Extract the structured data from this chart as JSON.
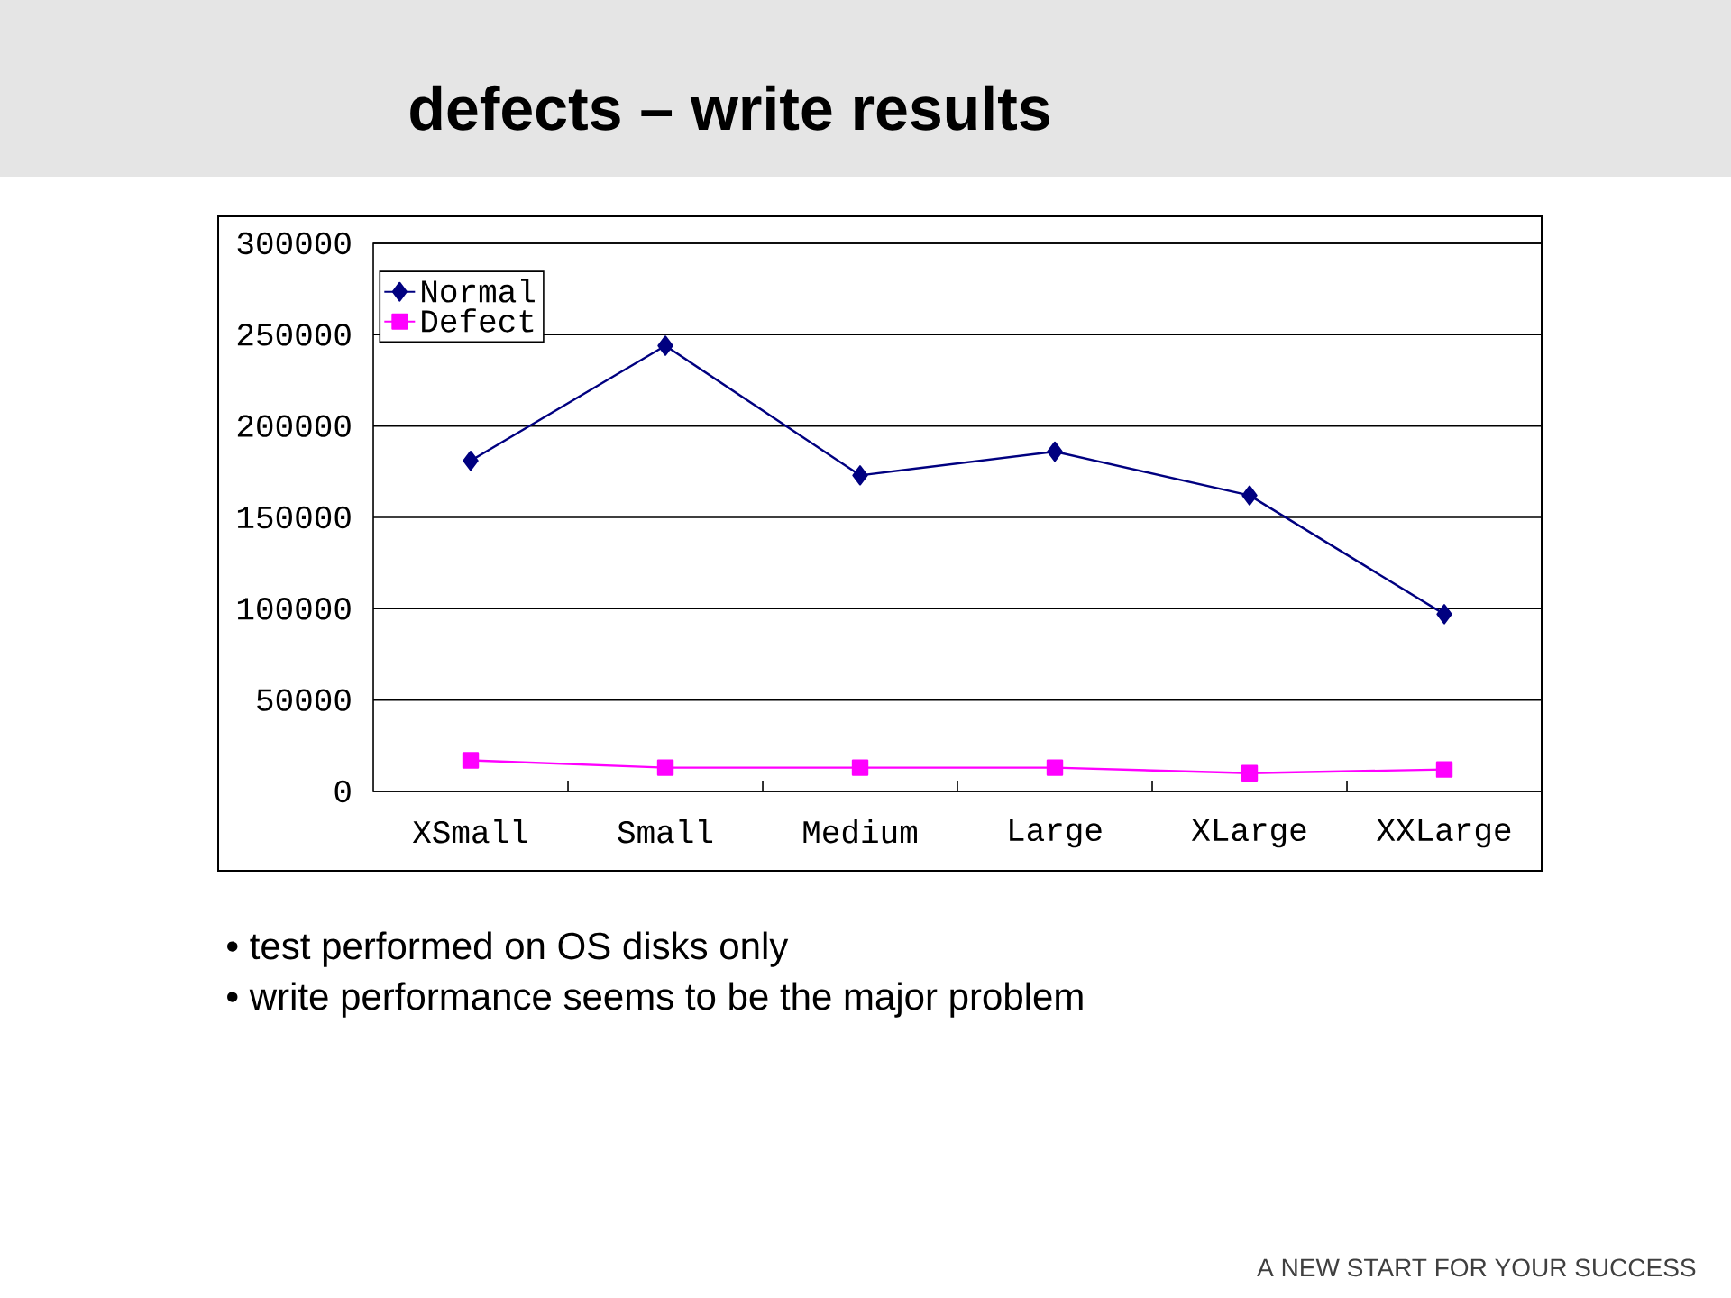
{
  "chart_data": {
    "type": "line",
    "title": "defects – write results",
    "annotations": [
      "• test performed on OS disks only",
      "• write performance seems to be the major problem",
      "A NEW START FOR YOUR SUCCESS"
    ],
    "categories": [
      "XSmall",
      "Small",
      "Medium",
      "Large",
      "XLarge",
      "XXLarge"
    ],
    "series": [
      {
        "name": "Normal",
        "color": "#000080",
        "marker": "diamond",
        "values": [
          181000,
          244000,
          173000,
          186000,
          162000,
          97000
        ]
      },
      {
        "name": "Defect",
        "color": "#ff00ff",
        "marker": "square",
        "values": [
          17000,
          13000,
          13000,
          13000,
          10000,
          12000
        ]
      }
    ],
    "ylim": [
      0,
      300000
    ],
    "yticks": [
      0,
      50000,
      100000,
      150000,
      200000,
      250000,
      300000
    ],
    "grid": "y",
    "legend": "top left",
    "line_style": "solid"
  }
}
